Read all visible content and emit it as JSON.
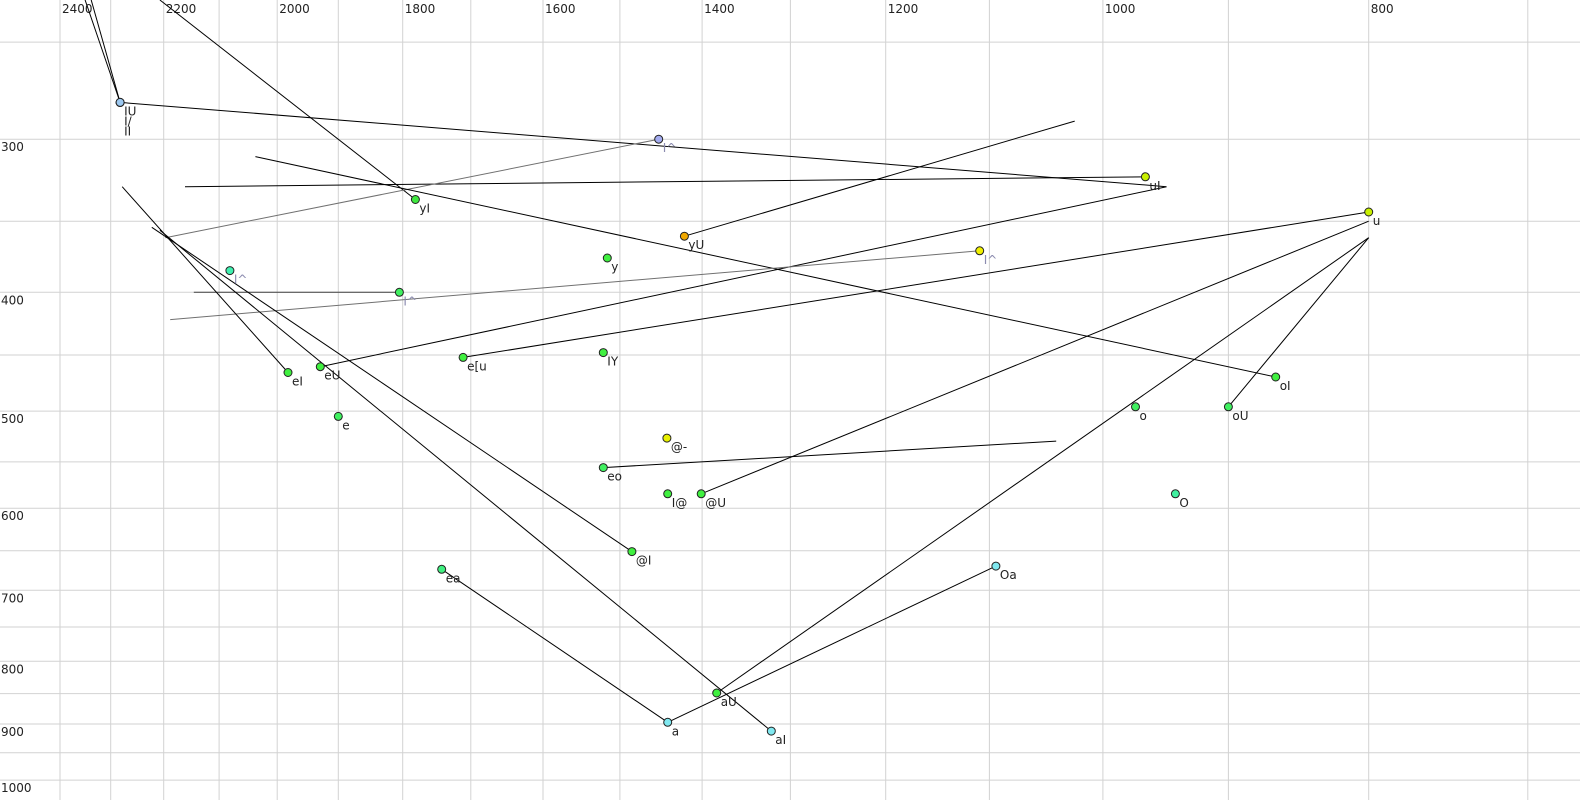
{
  "chart_data": {
    "type": "scatter",
    "title": "",
    "xlabel": "",
    "ylabel": "",
    "x_scale": "log",
    "y_scale": "log",
    "x_reversed": true,
    "xlim": [
      2524,
      670
    ],
    "ylim": [
      231,
      1038
    ],
    "grid": true,
    "x_gridlines": [
      2400,
      2300,
      2200,
      2100,
      2000,
      1900,
      1800,
      1700,
      1600,
      1500,
      1400,
      1300,
      1200,
      1100,
      1000,
      900,
      800,
      700
    ],
    "y_gridlines": [
      250,
      300,
      350,
      400,
      450,
      500,
      550,
      600,
      650,
      700,
      750,
      800,
      850,
      900,
      950,
      1000
    ],
    "x_ticks": [
      "2400",
      "2200",
      "2000",
      "1800",
      "1600",
      "1400",
      "1200",
      "1000",
      "800"
    ],
    "y_ticks": [
      "300",
      "400",
      "500",
      "600",
      "700",
      "800",
      "900",
      "1000"
    ],
    "points": [
      {
        "label": "IU",
        "x": 2282,
        "y": 280,
        "color": "#9cc8f0",
        "label_color": "#222222"
      },
      {
        "label": "I/",
        "x": 2282,
        "y": 280,
        "color": "#9cc8f0",
        "label_color": "#222222"
      },
      {
        "label": "II",
        "x": 2282,
        "y": 280,
        "color": "#9cc8f0",
        "label_color": "#222222"
      },
      {
        "label": "I^",
        "x": 1452,
        "y": 300,
        "color": "#a4acf0",
        "label_color": "#8c8cb0"
      },
      {
        "label": "yI",
        "x": 1781,
        "y": 336,
        "color": "#40e840",
        "label_color": "#222222"
      },
      {
        "label": "uI",
        "x": 965,
        "y": 322,
        "color": "#c8f000",
        "label_color": "#222222"
      },
      {
        "label": "u",
        "x": 800,
        "y": 344,
        "color": "#c8f000",
        "label_color": "#222222"
      },
      {
        "label": "yU",
        "x": 1421,
        "y": 360,
        "color": "#f0a800",
        "label_color": "#222222"
      },
      {
        "label": "I^",
        "x": 1109,
        "y": 370,
        "color": "#f0f000",
        "label_color": "#8c8cb0"
      },
      {
        "label": "y",
        "x": 1516,
        "y": 375,
        "color": "#40f040",
        "label_color": "#222222"
      },
      {
        "label": "I^",
        "x": 2081,
        "y": 384,
        "color": "#40f0b0",
        "label_color": "#8c8cb0"
      },
      {
        "label": "I^",
        "x": 1805,
        "y": 400,
        "color": "#40f060",
        "label_color": "#8c8cb0"
      },
      {
        "label": "e[u",
        "x": 1711,
        "y": 452,
        "color": "#40f040",
        "label_color": "#222222"
      },
      {
        "label": "IY",
        "x": 1521,
        "y": 448,
        "color": "#40f040",
        "label_color": "#222222"
      },
      {
        "label": "eU",
        "x": 1929,
        "y": 460,
        "color": "#40f040",
        "label_color": "#222222"
      },
      {
        "label": "eI",
        "x": 1982,
        "y": 465,
        "color": "#40f040",
        "label_color": "#222222"
      },
      {
        "label": "oI",
        "x": 865,
        "y": 469,
        "color": "#40f040",
        "label_color": "#222222"
      },
      {
        "label": "e",
        "x": 1900,
        "y": 505,
        "color": "#40f060",
        "label_color": "#222222"
      },
      {
        "label": "o",
        "x": 973,
        "y": 496,
        "color": "#40f060",
        "label_color": "#222222"
      },
      {
        "label": "oU",
        "x": 900,
        "y": 496,
        "color": "#40f060",
        "label_color": "#222222"
      },
      {
        "label": "@-",
        "x": 1442,
        "y": 526,
        "color": "#e8f000",
        "label_color": "#222222"
      },
      {
        "label": "eo",
        "x": 1521,
        "y": 556,
        "color": "#40f060",
        "label_color": "#222222"
      },
      {
        "label": "I@",
        "x": 1441,
        "y": 584,
        "color": "#40f040",
        "label_color": "#222222"
      },
      {
        "label": "@U",
        "x": 1401,
        "y": 584,
        "color": "#40f040",
        "label_color": "#222222"
      },
      {
        "label": "O",
        "x": 941,
        "y": 584,
        "color": "#40f0a0",
        "label_color": "#222222"
      },
      {
        "label": "@I",
        "x": 1485,
        "y": 651,
        "color": "#40f040",
        "label_color": "#222222"
      },
      {
        "label": "Oa",
        "x": 1094,
        "y": 669,
        "color": "#80e8f0",
        "label_color": "#222222"
      },
      {
        "label": "ea",
        "x": 1742,
        "y": 673,
        "color": "#40f080",
        "label_color": "#222222"
      },
      {
        "label": "aU",
        "x": 1383,
        "y": 849,
        "color": "#40f040",
        "label_color": "#222222"
      },
      {
        "label": "a",
        "x": 1441,
        "y": 897,
        "color": "#80e8f0",
        "label_color": "#222222"
      },
      {
        "label": "aI",
        "x": 1321,
        "y": 912,
        "color": "#80e8f0",
        "label_color": "#222222"
      }
    ],
    "segments": [
      {
        "from": [
          2350,
          231
        ],
        "to": [
          2282,
          280
        ],
        "color": "#000000"
      },
      {
        "from": [
          2338,
          231
        ],
        "to": [
          2282,
          280
        ],
        "color": "#000000"
      },
      {
        "from": [
          2282,
          280
        ],
        "to": [
          948,
          328
        ],
        "color": "#000000"
      },
      {
        "from": [
          2161,
          328
        ],
        "to": [
          965,
          322
        ],
        "color": "#000000"
      },
      {
        "from": [
          2207,
          231
        ],
        "to": [
          1781,
          336
        ],
        "color": "#000000"
      },
      {
        "from": [
          2197,
          361
        ],
        "to": [
          1452,
          300
        ],
        "color": "#707070"
      },
      {
        "from": [
          2037,
          310
        ],
        "to": [
          865,
          469
        ],
        "color": "#000000"
      },
      {
        "from": [
          1421,
          360
        ],
        "to": [
          1024,
          290
        ],
        "color": "#000000"
      },
      {
        "from": [
          1929,
          460
        ],
        "to": [
          948,
          328
        ],
        "color": "#000000"
      },
      {
        "from": [
          1711,
          452
        ],
        "to": [
          800,
          344
        ],
        "color": "#000000"
      },
      {
        "from": [
          2188,
          421
        ],
        "to": [
          1109,
          370
        ],
        "color": "#707070"
      },
      {
        "from": [
          2145,
          400
        ],
        "to": [
          1805,
          400
        ],
        "color": "#404040"
      },
      {
        "from": [
          2278,
          328
        ],
        "to": [
          1982,
          465
        ],
        "color": "#000000"
      },
      {
        "from": [
          2222,
          354
        ],
        "to": [
          1485,
          651
        ],
        "color": "#000000"
      },
      {
        "from": [
          2207,
          356
        ],
        "to": [
          1321,
          912
        ],
        "color": "#000000"
      },
      {
        "from": [
          1521,
          556
        ],
        "to": [
          1040,
          529
        ],
        "color": "#000000"
      },
      {
        "from": [
          1401,
          584
        ],
        "to": [
          800,
          350
        ],
        "color": "#000000"
      },
      {
        "from": [
          1383,
          849
        ],
        "to": [
          800,
          361
        ],
        "color": "#000000"
      },
      {
        "from": [
          900,
          496
        ],
        "to": [
          800,
          361
        ],
        "color": "#000000"
      },
      {
        "from": [
          1742,
          673
        ],
        "to": [
          1441,
          897
        ],
        "color": "#000000"
      },
      {
        "from": [
          1441,
          897
        ],
        "to": [
          1094,
          669
        ],
        "color": "#000000"
      }
    ]
  }
}
